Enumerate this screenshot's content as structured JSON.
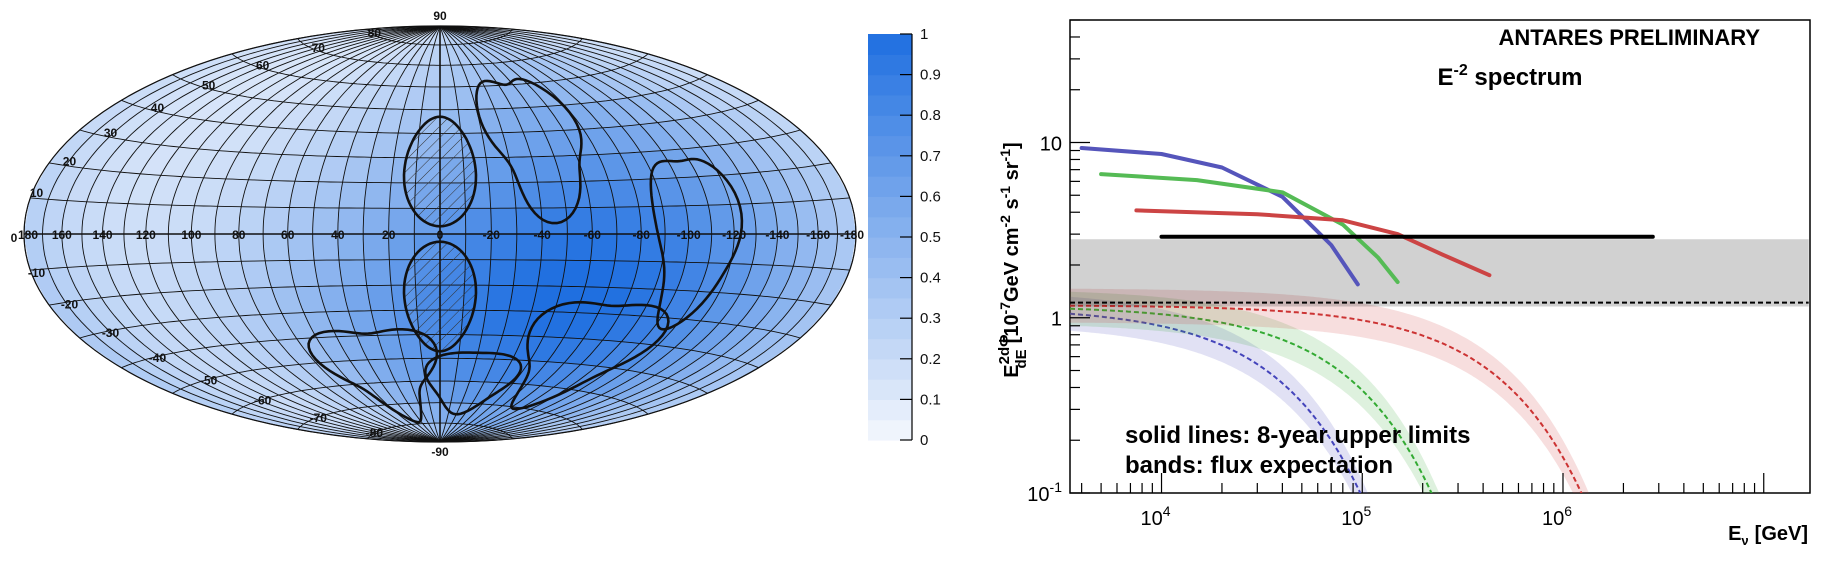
{
  "chart_data": [
    {
      "type": "heatmap",
      "projection": "hammer-aitoff",
      "colorbar": {
        "min": 0,
        "max": 1,
        "ticks": [
          "0",
          "0.1",
          "0.2",
          "0.3",
          "0.4",
          "0.5",
          "0.6",
          "0.7",
          "0.8",
          "0.9",
          "1"
        ],
        "color_low": "#f4f7fd",
        "color_high": "#1f6fe0"
      },
      "longitude_ticks": [
        180,
        160,
        140,
        120,
        100,
        80,
        60,
        40,
        20,
        0,
        -20,
        -40,
        -60,
        -80,
        -100,
        -120,
        -140,
        -160,
        -180
      ],
      "latitude_ticks_left": [
        90,
        80,
        70,
        60,
        50,
        40,
        30,
        20,
        10,
        0,
        -10,
        -20,
        -30,
        -40,
        -50,
        -60,
        -70,
        -80,
        -90
      ],
      "grid": true,
      "visibility_sources": [
        {
          "lon": -55,
          "lat": 0,
          "sigma_lon": 65,
          "sigma_lat": 55,
          "amp": 0.55
        },
        {
          "lon": -90,
          "lat": -35,
          "sigma_lon": 70,
          "sigma_lat": 40,
          "amp": 0.35
        },
        {
          "lon": 20,
          "lat": -45,
          "sigma_lon": 60,
          "sigma_lat": 35,
          "amp": 0.25
        }
      ],
      "regions": [
        {
          "name": "fermi-bubble-north",
          "hatched": true,
          "lon": 0,
          "lat": 25,
          "rlon": 15,
          "rlat": 22
        },
        {
          "name": "fermi-bubble-south",
          "hatched": true,
          "lon": 0,
          "lat": -25,
          "rlon": 15,
          "rlat": 22
        }
      ]
    },
    {
      "type": "line",
      "title": "ANTARES PRELIMINARY",
      "subtitle_base": "E",
      "subtitle_exp": "-2",
      "subtitle_rest": " spectrum",
      "xlabel": "E",
      "xlabel_sub": "ν",
      "xlabel_unit": "[GeV]",
      "ylabel_rest": "[10",
      "ylabel_exp1": "-7",
      "ylabel_mid1": "GeV cm",
      "ylabel_exp2": "-2",
      "ylabel_mid2": " s",
      "ylabel_exp3": "-1",
      "ylabel_mid3": " sr",
      "ylabel_exp4": "-1",
      "ylabel_end": "]",
      "ylabel_frac_left": "E",
      "ylabel_frac_top": "2dΦ",
      "ylabel_frac_bottom": "dE",
      "xscale": "log",
      "yscale": "log",
      "xlim": [
        3500,
        17000000
      ],
      "ylim": [
        0.1,
        50
      ],
      "x_ticks": [
        {
          "value": 10000,
          "base": "10",
          "exp": "4"
        },
        {
          "value": 100000,
          "base": "10",
          "exp": "5"
        },
        {
          "value": 1000000,
          "base": "10",
          "exp": "6"
        }
      ],
      "y_ticks": [
        {
          "value": 0.1,
          "base": "10",
          "exp": "-1"
        },
        {
          "value": 1,
          "base": "1",
          "exp": ""
        },
        {
          "value": 10,
          "base": "10",
          "exp": ""
        }
      ],
      "annotations": [
        "solid lines: 8-year upper limits",
        "bands: flux expectation"
      ],
      "upper_limits": [
        {
          "color": "#5555bb",
          "points": [
            [
              4000,
              9.3
            ],
            [
              10000,
              8.6
            ],
            [
              20000,
              7.2
            ],
            [
              40000,
              4.9
            ],
            [
              70000,
              2.6
            ],
            [
              95000,
              1.55
            ]
          ]
        },
        {
          "color": "#55bb55",
          "points": [
            [
              5000,
              6.6
            ],
            [
              15000,
              6.1
            ],
            [
              40000,
              5.2
            ],
            [
              80000,
              3.4
            ],
            [
              120000,
              2.2
            ],
            [
              150000,
              1.6
            ]
          ]
        },
        {
          "color": "#cc4444",
          "points": [
            [
              7500,
              4.1
            ],
            [
              30000,
              3.9
            ],
            [
              80000,
              3.6
            ],
            [
              150000,
              3.0
            ],
            [
              250000,
              2.3
            ],
            [
              430000,
              1.75
            ]
          ]
        },
        {
          "color": "#000000",
          "points": [
            [
              10000,
              2.9
            ],
            [
              2800000,
              2.9
            ]
          ]
        }
      ],
      "flux_expectations": [
        {
          "color": "#4444bb",
          "cutoff": 40000,
          "norm": 1.15,
          "band_low": 0.8,
          "band_high": 1.25
        },
        {
          "color": "#33aa33",
          "cutoff": 90000,
          "norm": 1.17,
          "band_low": 0.8,
          "band_high": 1.25
        },
        {
          "color": "#cc3333",
          "cutoff": 500000,
          "norm": 1.18,
          "band_low": 0.8,
          "band_high": 1.25
        },
        {
          "color": "#000000",
          "cutoff": 1000000000000,
          "norm": 1.22,
          "band_low": 0.95,
          "band_high": 2.3
        }
      ]
    }
  ]
}
